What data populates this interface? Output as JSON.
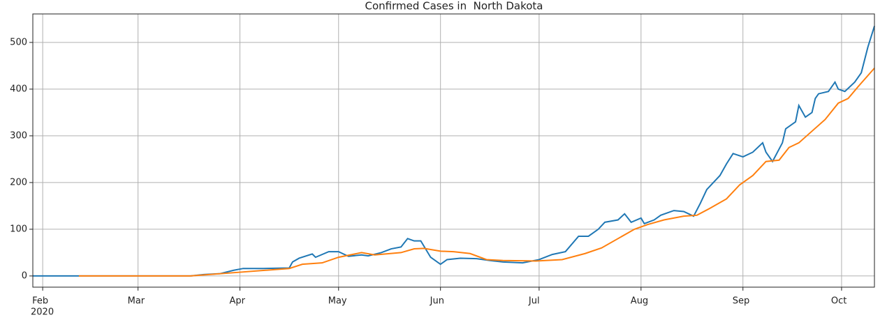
{
  "chart_data": {
    "type": "line",
    "title": "Confirmed Cases in  North Dakota",
    "x_sublabel": "2020",
    "xlim": [
      "2020-01-29",
      "2020-10-11"
    ],
    "xticks": [
      {
        "value": "2020-02-01",
        "label": "Feb"
      },
      {
        "value": "2020-03-01",
        "label": "Mar"
      },
      {
        "value": "2020-04-01",
        "label": "Apr"
      },
      {
        "value": "2020-05-01",
        "label": "May"
      },
      {
        "value": "2020-06-01",
        "label": "Jun"
      },
      {
        "value": "2020-07-01",
        "label": "Jul"
      },
      {
        "value": "2020-08-01",
        "label": "Aug"
      },
      {
        "value": "2020-09-01",
        "label": "Sep"
      },
      {
        "value": "2020-10-01",
        "label": "Oct"
      }
    ],
    "ylim": [
      -24,
      561
    ],
    "yticks": [
      0,
      100,
      200,
      300,
      400,
      500
    ],
    "grid": true,
    "series": [
      {
        "color": "#1f77b4",
        "x": [
          "2020-01-29",
          "2020-02-10",
          "2020-03-01",
          "2020-03-17",
          "2020-03-21",
          "2020-03-26",
          "2020-03-30",
          "2020-04-02",
          "2020-04-08",
          "2020-04-16",
          "2020-04-17",
          "2020-04-19",
          "2020-04-23",
          "2020-04-24",
          "2020-04-28",
          "2020-05-01",
          "2020-05-04",
          "2020-05-08",
          "2020-05-10",
          "2020-05-14",
          "2020-05-17",
          "2020-05-20",
          "2020-05-22",
          "2020-05-24",
          "2020-05-26",
          "2020-05-29",
          "2020-06-01",
          "2020-06-03",
          "2020-06-07",
          "2020-06-12",
          "2020-06-16",
          "2020-06-20",
          "2020-06-26",
          "2020-07-01",
          "2020-07-05",
          "2020-07-09",
          "2020-07-13",
          "2020-07-16",
          "2020-07-19",
          "2020-07-21",
          "2020-07-25",
          "2020-07-27",
          "2020-07-29",
          "2020-08-01",
          "2020-08-02",
          "2020-08-05",
          "2020-08-07",
          "2020-08-09",
          "2020-08-11",
          "2020-08-14",
          "2020-08-17",
          "2020-08-19",
          "2020-08-21",
          "2020-08-25",
          "2020-08-27",
          "2020-08-29",
          "2020-09-01",
          "2020-09-04",
          "2020-09-07",
          "2020-09-08",
          "2020-09-10",
          "2020-09-13",
          "2020-09-14",
          "2020-09-17",
          "2020-09-18",
          "2020-09-20",
          "2020-09-22",
          "2020-09-23",
          "2020-09-24",
          "2020-09-27",
          "2020-09-29",
          "2020-09-30",
          "2020-10-02",
          "2020-10-05",
          "2020-10-07",
          "2020-10-09",
          "2020-10-11"
        ],
        "values": [
          0,
          0,
          0,
          0,
          3,
          5,
          12,
          16,
          16,
          17,
          30,
          38,
          47,
          40,
          52,
          52,
          42,
          45,
          43,
          50,
          58,
          62,
          80,
          75,
          75,
          40,
          25,
          35,
          38,
          37,
          33,
          30,
          28,
          35,
          46,
          52,
          85,
          85,
          100,
          115,
          120,
          133,
          115,
          124,
          112,
          120,
          130,
          135,
          140,
          138,
          128,
          155,
          185,
          215,
          240,
          262,
          255,
          265,
          285,
          265,
          245,
          285,
          315,
          330,
          365,
          340,
          350,
          380,
          390,
          395,
          415,
          400,
          395,
          415,
          435,
          490,
          535
        ]
      },
      {
        "color": "#ff7f0e",
        "x": [
          "2020-02-12",
          "2020-03-17",
          "2020-04-01",
          "2020-04-16",
          "2020-04-20",
          "2020-04-26",
          "2020-05-01",
          "2020-05-08",
          "2020-05-12",
          "2020-05-20",
          "2020-05-24",
          "2020-05-27",
          "2020-06-01",
          "2020-06-05",
          "2020-06-10",
          "2020-06-15",
          "2020-06-20",
          "2020-06-30",
          "2020-07-08",
          "2020-07-15",
          "2020-07-20",
          "2020-07-25",
          "2020-07-30",
          "2020-08-03",
          "2020-08-08",
          "2020-08-14",
          "2020-08-18",
          "2020-08-22",
          "2020-08-27",
          "2020-08-31",
          "2020-09-04",
          "2020-09-08",
          "2020-09-12",
          "2020-09-15",
          "2020-09-18",
          "2020-09-22",
          "2020-09-26",
          "2020-09-30",
          "2020-10-03",
          "2020-10-06",
          "2020-10-11"
        ],
        "values": [
          0,
          0,
          8,
          16,
          25,
          28,
          40,
          50,
          45,
          50,
          58,
          59,
          53,
          52,
          48,
          35,
          33,
          32,
          35,
          48,
          60,
          80,
          100,
          110,
          120,
          128,
          130,
          145,
          165,
          195,
          215,
          245,
          248,
          275,
          285,
          310,
          335,
          370,
          380,
          405,
          445
        ]
      }
    ]
  }
}
